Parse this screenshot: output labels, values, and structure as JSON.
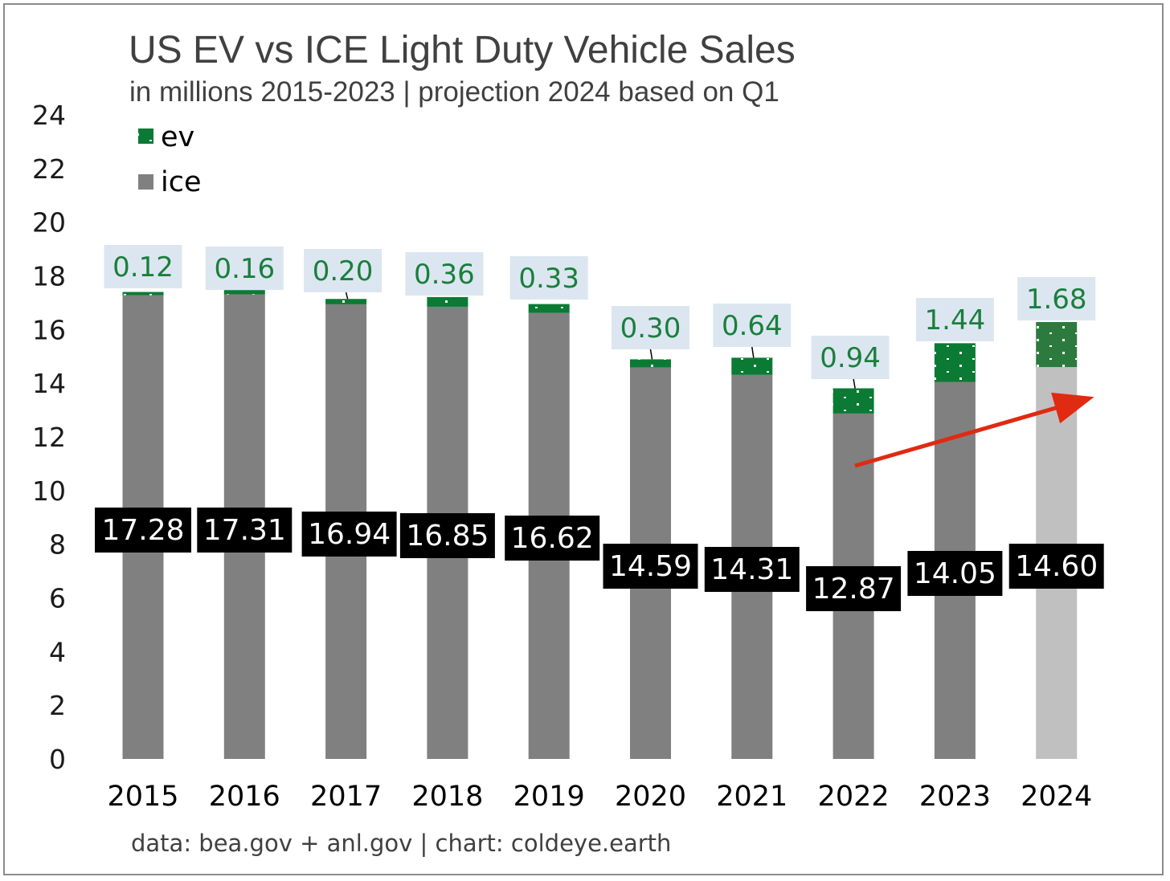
{
  "chart_data": {
    "type": "bar",
    "stacked": true,
    "title": "US EV vs ICE Light Duty Vehicle Sales",
    "subtitle": "in millions 2015-2023 | projection 2024 based on Q1",
    "source": "data: bea.gov + anl.gov | chart: coldeye.earth",
    "categories": [
      "2015",
      "2016",
      "2017",
      "2018",
      "2019",
      "2020",
      "2021",
      "2022",
      "2023",
      "2024"
    ],
    "series": [
      {
        "name": "ice",
        "values": [
          17.28,
          17.31,
          16.94,
          16.85,
          16.62,
          14.59,
          14.31,
          12.87,
          14.05,
          14.6
        ],
        "labels": [
          "17.28",
          "17.31",
          "16.94",
          "16.85",
          "16.62",
          "14.59",
          "14.31",
          "12.87",
          "14.05",
          "14.60"
        ],
        "color": "#808080",
        "projection_color": "#c0c0c0"
      },
      {
        "name": "ev",
        "values": [
          0.12,
          0.16,
          0.2,
          0.36,
          0.33,
          0.3,
          0.64,
          0.94,
          1.44,
          1.68
        ],
        "labels": [
          "0.12",
          "0.16",
          "0.20",
          "0.36",
          "0.33",
          "0.30",
          "0.64",
          "0.94",
          "1.44",
          "1.68"
        ],
        "color": "#0b7a34",
        "projection_color": "#2d7a3e"
      }
    ],
    "projection_category": "2024",
    "ylim": [
      0,
      24
    ],
    "yticks": [
      0,
      2,
      4,
      6,
      8,
      10,
      12,
      14,
      16,
      18,
      20,
      22,
      24
    ],
    "grid": false,
    "legend_position": "top-left",
    "trend_arrow_color": "#e02a12",
    "ev_label_bg": "#dce6f1",
    "ice_label_bg": "#000000"
  }
}
